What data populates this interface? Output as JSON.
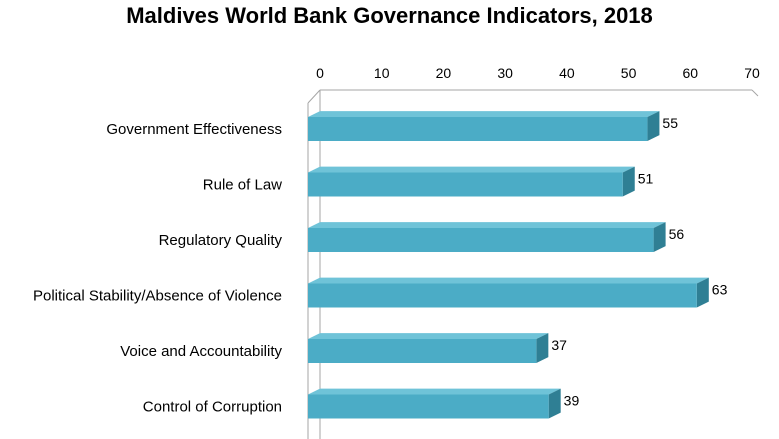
{
  "chart_data": {
    "type": "bar",
    "orientation": "horizontal",
    "style": "3d",
    "title": "Maldives World Bank Governance Indicators, 2018",
    "categories": [
      "Government Effectiveness",
      "Rule of Law",
      "Regulatory Quality",
      "Political Stability/Absence of Violence",
      "Voice and Accountability",
      "Control of Corruption"
    ],
    "values": [
      55,
      51,
      56,
      63,
      37,
      39
    ],
    "data_labels": [
      "55",
      "51",
      "56",
      "63",
      "37",
      "39"
    ],
    "xaxis_position": "top",
    "xticks": [
      "0",
      "10",
      "20",
      "30",
      "40",
      "50",
      "60",
      "70"
    ],
    "xlim": [
      0,
      70
    ],
    "grid": false,
    "legend": "none",
    "colors": {
      "bar_front": "#4BACC6",
      "bar_top": "#6FC3D8",
      "bar_side": "#2F7F94",
      "axis": "#A6A6A6"
    }
  }
}
